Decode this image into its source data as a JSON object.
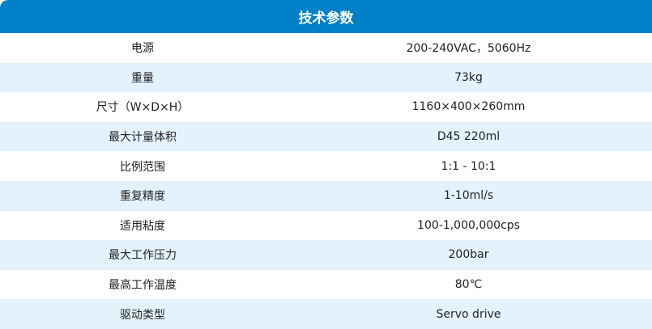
{
  "title": "技术参数",
  "colors": {
    "header": "#0080c6",
    "stripe": "#e3f2fd"
  },
  "rows": [
    {
      "label": "电源",
      "value": "200-240VAC，5060Hz"
    },
    {
      "label": "重量",
      "value": "73kg"
    },
    {
      "label": "尺寸（W×D×H）",
      "value": "1160×400×260mm"
    },
    {
      "label": "最大计量体积",
      "value": "D45 220ml"
    },
    {
      "label": "比例范围",
      "value": "1:1 - 10:1"
    },
    {
      "label": "重复精度",
      "value": "1-10ml/s"
    },
    {
      "label": "适用粘度",
      "value": "100-1,000,000cps"
    },
    {
      "label": "最大工作压力",
      "value": "200bar"
    },
    {
      "label": "最高工作温度",
      "value": "80℃"
    },
    {
      "label": "驱动类型",
      "value": "Servo drive"
    }
  ]
}
